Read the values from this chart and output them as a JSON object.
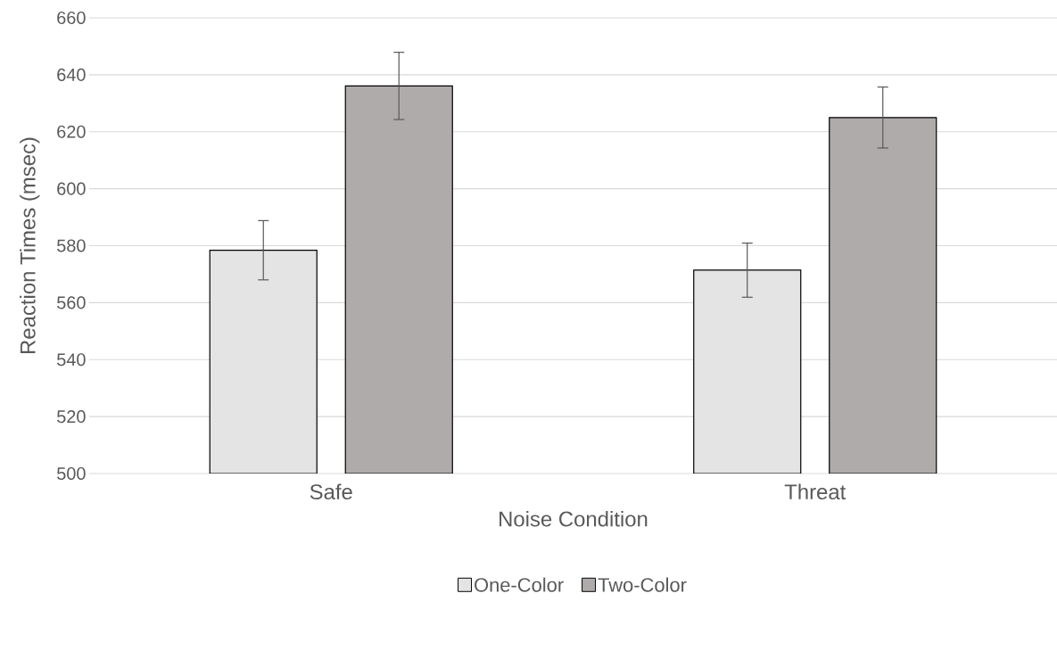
{
  "chart_data": {
    "type": "bar",
    "xlabel": "Noise Condition",
    "ylabel": "Reaction Times (msec)",
    "categories": [
      "Safe",
      "Threat"
    ],
    "series": [
      {
        "name": "One-Color",
        "color": "#e4e4e4",
        "values": [
          578.4,
          571.4
        ],
        "errors": [
          10.4,
          9.5
        ]
      },
      {
        "name": "Two-Color",
        "color": "#afabab",
        "values": [
          636.1,
          625
        ],
        "errors": [
          11.8,
          10.7
        ]
      }
    ],
    "ylim": [
      500,
      660
    ],
    "yticks": [
      500,
      520,
      540,
      560,
      580,
      600,
      620,
      640,
      660
    ],
    "grid": "y",
    "legend": "bottom"
  }
}
